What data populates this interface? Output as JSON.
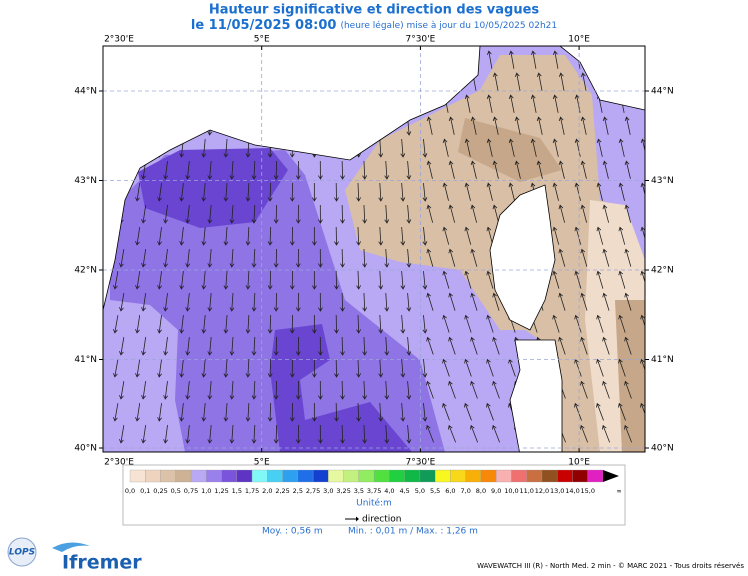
{
  "header": {
    "title": "Hauteur significative et direction des vagues",
    "date": "le 11/05/2025 08:00",
    "note": "(heure légale) mise à jour du 10/05/2025 02h21"
  },
  "map": {
    "lon_ticks": [
      {
        "value": 2.5,
        "label": "2°30'E"
      },
      {
        "value": 5,
        "label": "5°E"
      },
      {
        "value": 7.5,
        "label": "7°30'E"
      },
      {
        "value": 10,
        "label": "10°E"
      }
    ],
    "lat_ticks": [
      {
        "value": 44,
        "label": "44°N"
      },
      {
        "value": 43,
        "label": "43°N"
      },
      {
        "value": 42,
        "label": "42°N"
      },
      {
        "value": 41,
        "label": "41°N"
      },
      {
        "value": 40,
        "label": "40°N"
      }
    ]
  },
  "legend": {
    "labels": [
      "0,0",
      "0,1",
      "0,25",
      "0,5",
      "0,75",
      "1,0",
      "1,25",
      "1,5",
      "1,75",
      "2,0",
      "2,25",
      "2,5",
      "2,75",
      "3,0",
      "3,25",
      "3,5",
      "3,75",
      "4,0",
      "4,5",
      "5,0",
      "5,5",
      "6,0",
      "7,0",
      "8,0",
      "9,0",
      "10,0",
      "11,0",
      "12,0",
      "13,0",
      "14,0",
      "15,0",
      "∞"
    ],
    "colors": [
      "#f6e3d3",
      "#eed4bf",
      "#dcc2a8",
      "#cdb296",
      "#b9a8f4",
      "#9a80ea",
      "#7a55dc",
      "#5e34c4",
      "#80f8f8",
      "#48d0f4",
      "#2ea0f0",
      "#1f70e8",
      "#1440d0",
      "#e6f8a0",
      "#c4f080",
      "#90ec60",
      "#50e040",
      "#20d040",
      "#10b848",
      "#109c58",
      "#f8f820",
      "#f8d818",
      "#f8b008",
      "#f88808",
      "#f8b0b0",
      "#f07070",
      "#c87040",
      "#905020",
      "#c80000",
      "#900000",
      "#e020c0"
    ],
    "unit": "Unité:m",
    "direction": "direction"
  },
  "stats": {
    "mean": "Moy. : 0,56 m",
    "minmax": "Min. : 0,01 m / Max. : 1,26 m"
  },
  "footer": {
    "lops": "LOPS",
    "ifremer": "Ifremer",
    "credits": "WAVEWATCH III (R) - North Med. 2 min - © MARC 2021 - Tous droits réservés"
  }
}
